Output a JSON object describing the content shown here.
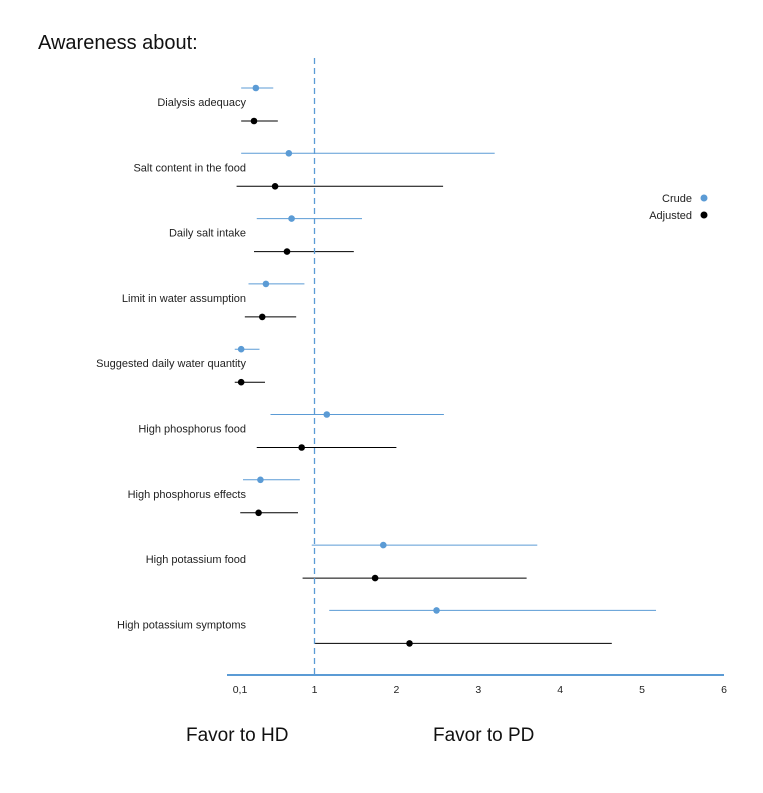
{
  "chart_data": {
    "type": "forest",
    "title": "Awareness about:",
    "x_ticks": [
      "0,1",
      "1",
      "2",
      "3",
      "4",
      "5",
      "6"
    ],
    "reference_line": 1,
    "xlim": [
      0.1,
      6
    ],
    "legend": {
      "placement": "right",
      "entries": [
        {
          "key": "crude",
          "label": "Crude",
          "color": "#5b9bd5"
        },
        {
          "key": "adjusted",
          "label": "Adjusted",
          "color": "#000000"
        }
      ]
    },
    "favor_left": "Favor to HD",
    "favor_right": "Favor to PD",
    "categories": [
      {
        "label": "Dialysis adequacy",
        "crude": {
          "est": 0.36,
          "lo": 0.2,
          "hi": 0.55
        },
        "adjusted": {
          "est": 0.34,
          "lo": 0.2,
          "hi": 0.6
        }
      },
      {
        "label": "Salt content in the food",
        "crude": {
          "est": 0.72,
          "lo": 0.2,
          "hi": 3.2
        },
        "adjusted": {
          "est": 0.57,
          "lo": 0.15,
          "hi": 2.57
        }
      },
      {
        "label": "Daily salt intake",
        "crude": {
          "est": 0.75,
          "lo": 0.37,
          "hi": 1.58
        },
        "adjusted": {
          "est": 0.7,
          "lo": 0.34,
          "hi": 1.48
        }
      },
      {
        "label": "Limit in water assumption",
        "crude": {
          "est": 0.47,
          "lo": 0.28,
          "hi": 0.89
        },
        "adjusted": {
          "est": 0.43,
          "lo": 0.24,
          "hi": 0.8
        }
      },
      {
        "label": "Suggested daily water quantity",
        "crude": {
          "est": 0.2,
          "lo": 0.13,
          "hi": 0.4
        },
        "adjusted": {
          "est": 0.2,
          "lo": 0.13,
          "hi": 0.46
        }
      },
      {
        "label": "High phosphorus food",
        "crude": {
          "est": 1.15,
          "lo": 0.52,
          "hi": 2.58
        },
        "adjusted": {
          "est": 0.86,
          "lo": 0.37,
          "hi": 2.0
        }
      },
      {
        "label": "High phosphorus effects",
        "crude": {
          "est": 0.41,
          "lo": 0.22,
          "hi": 0.84
        },
        "adjusted": {
          "est": 0.39,
          "lo": 0.19,
          "hi": 0.82
        }
      },
      {
        "label": "High potassium food",
        "crude": {
          "est": 1.84,
          "lo": 0.97,
          "hi": 3.72
        },
        "adjusted": {
          "est": 1.74,
          "lo": 0.87,
          "hi": 3.59
        }
      },
      {
        "label": "High potassium symptoms",
        "crude": {
          "est": 2.49,
          "lo": 1.18,
          "hi": 5.17
        },
        "adjusted": {
          "est": 2.16,
          "lo": 1.0,
          "hi": 4.63
        }
      }
    ]
  }
}
